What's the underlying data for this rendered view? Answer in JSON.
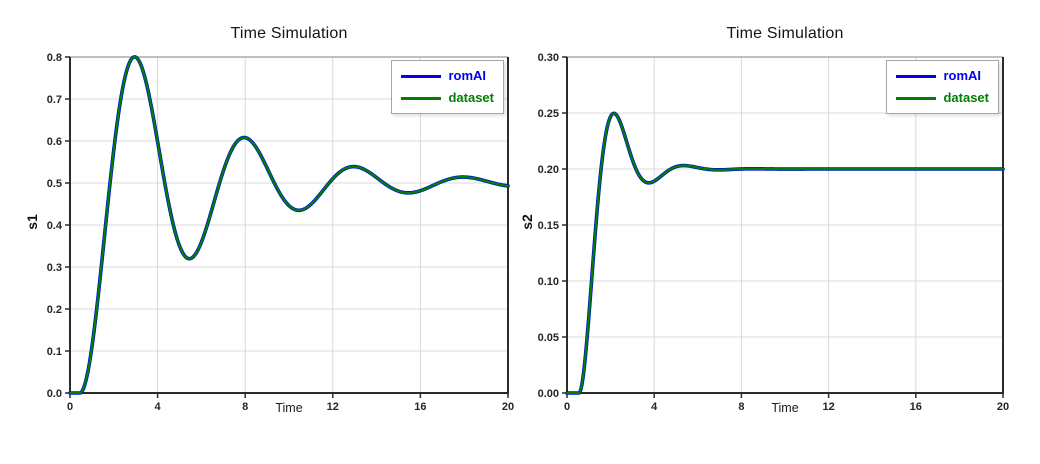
{
  "page": {
    "background": "#ffffff"
  },
  "chart_data": [
    {
      "type": "line",
      "title": "Time Simulation",
      "xlabel": "Time",
      "ylabel": "s1",
      "xlim": [
        0,
        20
      ],
      "ylim": [
        0.0,
        0.8
      ],
      "xticks": [
        0,
        4,
        8,
        12,
        16,
        20
      ],
      "xtick_labels": [
        "0",
        "4",
        "8",
        "12",
        "16",
        "20"
      ],
      "yticks": [
        0.0,
        0.1,
        0.2,
        0.3,
        0.4,
        0.5,
        0.6,
        0.7,
        0.8
      ],
      "ytick_labels": [
        "0.0",
        "0.1",
        "0.2",
        "0.3",
        "0.4",
        "0.5",
        "0.6",
        "0.7",
        "0.8"
      ],
      "grid": true,
      "legend_position": "top-right",
      "x": [
        0,
        0.5,
        1,
        1.5,
        2,
        2.5,
        3,
        3.5,
        4,
        4.5,
        5,
        5.5,
        6,
        6.5,
        7,
        7.5,
        8,
        8.5,
        9,
        9.5,
        10,
        10.5,
        11,
        11.5,
        12,
        12.5,
        13,
        13.5,
        14,
        14.5,
        15,
        15.5,
        16,
        16.5,
        17,
        17.5,
        18,
        18.5,
        19,
        19.5,
        20
      ],
      "series": [
        {
          "name": "romAI",
          "color": "#0000ee",
          "line_width": 3.6,
          "model": {
            "kind": "damped_step",
            "final": 0.5,
            "t0": 0.45,
            "sigma": 0.204,
            "omega": 1.2566
          },
          "values": [
            0,
            0.001,
            0.109,
            0.336,
            0.579,
            0.749,
            0.799,
            0.734,
            0.599,
            0.453,
            0.35,
            0.32,
            0.36,
            0.44,
            0.528,
            0.59,
            0.608,
            0.585,
            0.536,
            0.483,
            0.446,
            0.435,
            0.449,
            0.478,
            0.51,
            0.532,
            0.539,
            0.531,
            0.513,
            0.494,
            0.481,
            0.477,
            0.482,
            0.492,
            0.503,
            0.512,
            0.514,
            0.511,
            0.505,
            0.498,
            0.493
          ]
        },
        {
          "name": "dataset",
          "color": "#007f00",
          "line_width": 2.3,
          "model": {
            "kind": "damped_step",
            "final": 0.5,
            "t0": 0.45,
            "sigma": 0.204,
            "omega": 1.2566
          },
          "values": [
            0,
            0.001,
            0.109,
            0.336,
            0.579,
            0.749,
            0.799,
            0.734,
            0.599,
            0.453,
            0.35,
            0.32,
            0.36,
            0.44,
            0.528,
            0.59,
            0.608,
            0.585,
            0.536,
            0.483,
            0.446,
            0.435,
            0.449,
            0.478,
            0.51,
            0.532,
            0.539,
            0.531,
            0.513,
            0.494,
            0.481,
            0.477,
            0.482,
            0.492,
            0.503,
            0.512,
            0.514,
            0.511,
            0.505,
            0.498,
            0.493
          ]
        }
      ]
    },
    {
      "type": "line",
      "title": "Time Simulation",
      "xlabel": "Time",
      "ylabel": "s2",
      "xlim": [
        0,
        20
      ],
      "ylim": [
        0.0,
        0.3
      ],
      "xticks": [
        0,
        4,
        8,
        12,
        16,
        20
      ],
      "xtick_labels": [
        "0",
        "4",
        "8",
        "12",
        "16",
        "20"
      ],
      "yticks": [
        0.0,
        0.05,
        0.1,
        0.15,
        0.2,
        0.25,
        0.3
      ],
      "ytick_labels": [
        "0.00",
        "0.05",
        "0.10",
        "0.15",
        "0.20",
        "0.25",
        "0.30"
      ],
      "grid": true,
      "legend_position": "top-right",
      "x": [
        0,
        0.5,
        1,
        1.5,
        2,
        2.5,
        3,
        3.5,
        4,
        4.5,
        5,
        5.5,
        6,
        6.5,
        7,
        7.5,
        8,
        8.5,
        9,
        9.5,
        10,
        10.5,
        11,
        11.5,
        12,
        12.5,
        13,
        13.5,
        14,
        14.5,
        15,
        15.5,
        16,
        16.5,
        17,
        17.5,
        18,
        18.5,
        19,
        19.5,
        20
      ],
      "series": [
        {
          "name": "romAI",
          "color": "#0000ee",
          "line_width": 3.6,
          "model": {
            "kind": "damped_step",
            "final": 0.2,
            "t0": 0.55,
            "sigma": 0.87,
            "omega": 1.963
          },
          "values": [
            0,
            0,
            0.068,
            0.188,
            0.247,
            0.239,
            0.208,
            0.19,
            0.189,
            0.196,
            0.202,
            0.203,
            0.201,
            0.2,
            0.2,
            0.2,
            0.2,
            0.2,
            0.2,
            0.2,
            0.2,
            0.2,
            0.2,
            0.2,
            0.2,
            0.2,
            0.2,
            0.2,
            0.2,
            0.2,
            0.2,
            0.2,
            0.2,
            0.2,
            0.2,
            0.2,
            0.2,
            0.2,
            0.2,
            0.2,
            0.2
          ]
        },
        {
          "name": "dataset",
          "color": "#007f00",
          "line_width": 2.3,
          "model": {
            "kind": "damped_step",
            "final": 0.2,
            "t0": 0.55,
            "sigma": 0.87,
            "omega": 1.963
          },
          "values": [
            0,
            0,
            0.068,
            0.188,
            0.247,
            0.239,
            0.208,
            0.19,
            0.189,
            0.196,
            0.202,
            0.203,
            0.201,
            0.2,
            0.2,
            0.2,
            0.2,
            0.2,
            0.2,
            0.2,
            0.2,
            0.2,
            0.2,
            0.2,
            0.2,
            0.2,
            0.2,
            0.2,
            0.2,
            0.2,
            0.2,
            0.2,
            0.2,
            0.2,
            0.2,
            0.2,
            0.2,
            0.2,
            0.2,
            0.2,
            0.2
          ]
        }
      ]
    }
  ],
  "style_colors": {
    "axis": "#2b2b2b",
    "box_top": "#9a9a9a",
    "grid": "#d8d8d8",
    "tick_text": "#262626"
  }
}
